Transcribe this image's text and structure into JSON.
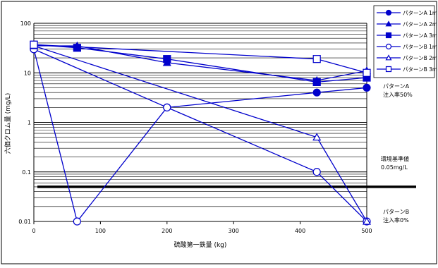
{
  "chart_data": {
    "type": "line",
    "title": "",
    "xlabel": "硫酸第一鉄量 (kg)",
    "ylabel": "六価クロム量 (mg/L)",
    "xlim": [
      0,
      500
    ],
    "ylim": [
      0.01,
      100
    ],
    "yscale": "log",
    "grid": "horizontal minor log gridlines",
    "legend_position": "right, outside plot",
    "x_ticks": [
      "0",
      "100",
      "200",
      "300",
      "400",
      "500"
    ],
    "y_ticks": [
      "0.01",
      "0.1",
      "1",
      "10",
      "100"
    ],
    "series": [
      {
        "name": "パターンA 1m",
        "marker": "filled-circle",
        "x": [
          0,
          200,
          425,
          500
        ],
        "values": [
          30,
          2,
          4,
          5
        ]
      },
      {
        "name": "パターンA 2m",
        "marker": "filled-triangle",
        "x": [
          0,
          65,
          200,
          425,
          500
        ],
        "values": [
          35,
          35,
          16,
          7,
          11
        ]
      },
      {
        "name": "パターンA 3m",
        "marker": "filled-square",
        "x": [
          0,
          65,
          200,
          425,
          500
        ],
        "values": [
          37,
          32,
          19,
          6.5,
          8
        ]
      },
      {
        "name": "パターンB 1m",
        "marker": "open-circle",
        "x": [
          0,
          65,
          200,
          425,
          500
        ],
        "values": [
          30,
          0.01,
          2,
          0.1,
          0.01
        ]
      },
      {
        "name": "パターンB 2m",
        "marker": "open-triangle",
        "x": [
          0,
          425,
          500
        ],
        "values": [
          35,
          0.5,
          0.01
        ]
      },
      {
        "name": "パターンB 3m",
        "marker": "open-square",
        "x": [
          0,
          425,
          500
        ],
        "values": [
          37,
          19,
          10
        ]
      }
    ],
    "reference_line": {
      "value": 0.05,
      "label_line1": "環境基準値",
      "label_line2": "0.05mg/L"
    },
    "annotations": [
      {
        "line1": "パターンA",
        "line2": "注入率50%"
      },
      {
        "line1": "パターンB",
        "line2": "注入率0%"
      }
    ],
    "colors": {
      "series": "#0000cc",
      "reference_line": "#000000",
      "grid": "#000000"
    }
  }
}
